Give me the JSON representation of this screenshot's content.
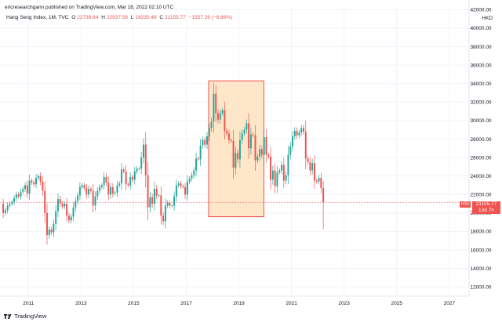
{
  "publisher_line": "ericresearchgann published on TradingView.com, Mar 18, 2022 02:10 UTC",
  "legend": {
    "symbol": "Hang Seng Index, 1M, TVC",
    "o_label": "O",
    "o": "22739.84",
    "h_label": "H",
    "h": "22937.56",
    "l_label": "L",
    "l": "18235.48",
    "c_label": "C",
    "c": "21155.77",
    "change": "−1557.26 (−6.86%)"
  },
  "currency": "HKD",
  "badges": {
    "symbol": "HSI",
    "price": "21155.77",
    "countdown": "13d 7h"
  },
  "footer": {
    "brand": "TradingView"
  },
  "colors": {
    "up": "#26a69a",
    "down": "#ef5350",
    "box_fill": "#fde7c8",
    "box_stroke": "#ef5350"
  },
  "chart_data": {
    "type": "candlestick",
    "y_ticks": [
      "12000.00",
      "14000.00",
      "16000.00",
      "18000.00",
      "20000.00",
      "22000.00",
      "24000.00",
      "26000.00",
      "28000.00",
      "30000.00",
      "32000.00",
      "34000.00",
      "36000.00",
      "38000.00",
      "40000.00",
      "42000.00"
    ],
    "y_tick_values": [
      12000,
      14000,
      16000,
      18000,
      20000,
      22000,
      24000,
      26000,
      28000,
      30000,
      32000,
      34000,
      36000,
      38000,
      40000,
      42000
    ],
    "ylim": [
      11000,
      42200
    ],
    "x_ticks": [
      "2011",
      "2013",
      "2015",
      "2017",
      "2019",
      "2021",
      "2023",
      "2025",
      "2027"
    ],
    "x_tick_values": [
      2011,
      2013,
      2015,
      2017,
      2019,
      2021,
      2023,
      2025,
      2027
    ],
    "xlim": [
      2009.92,
      2027.75
    ],
    "current_price": 21155.77,
    "highlight_box": {
      "x_from": 2017.85,
      "x_to": 2019.95,
      "y_from": 19600,
      "y_to": 34300
    },
    "closes": [
      20000,
      20300,
      20800,
      21000,
      21200,
      21600,
      22000,
      21800,
      22300,
      22600,
      23000,
      22100,
      23500,
      23300,
      23100,
      23800,
      24000,
      23400,
      22400,
      20000,
      17600,
      18200,
      17900,
      18800,
      20200,
      21500,
      21000,
      20700,
      21000,
      19700,
      19200,
      19600,
      20600,
      21300,
      21900,
      22800,
      23000,
      22700,
      22000,
      22600,
      22400,
      20800,
      21800,
      22400,
      22800,
      23000,
      23900,
      23300,
      22000,
      22800,
      22100,
      22200,
      23000,
      23200,
      24700,
      24500,
      23100,
      23000,
      23900,
      23600,
      24500,
      24800,
      24800,
      26000,
      27400,
      24100,
      20600,
      21700,
      21000,
      22600,
      21900,
      21900,
      19700,
      19100,
      20800,
      21100,
      20800,
      20800,
      21800,
      23000,
      23200,
      22900,
      22800,
      22000,
      23400,
      23700,
      24100,
      24600,
      25900,
      25800,
      27300,
      27900,
      27400,
      28300,
      29200,
      29900,
      32900,
      30800,
      30100,
      30800,
      31100,
      28900,
      28600,
      27900,
      27800,
      24900,
      26500,
      25800,
      27900,
      28600,
      29000,
      29700,
      27000,
      28500,
      28400,
      25700,
      26100,
      26900,
      26300,
      28200,
      26300,
      26100,
      23600,
      24600,
      22900,
      24400,
      24600,
      25200,
      23500,
      24100,
      26300,
      27200,
      28300,
      28900,
      28400,
      28700,
      29200,
      28800,
      25900,
      25500,
      24600,
      25400,
      23500,
      23400,
      23800,
      22700,
      21155.77
    ]
  }
}
